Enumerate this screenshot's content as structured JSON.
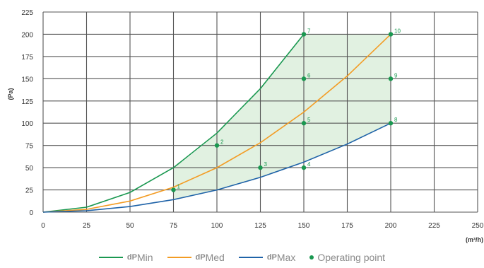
{
  "chart_data": {
    "type": "line",
    "xlabel": "(m³/h)",
    "ylabel": "(Pa)",
    "xlim": [
      0,
      250
    ],
    "ylim": [
      0,
      225
    ],
    "x_ticks": [
      "0",
      "25",
      "50",
      "75",
      "100",
      "125",
      "150",
      "175",
      "200",
      "225",
      "250"
    ],
    "y_ticks": [
      "0",
      "25",
      "50",
      "75",
      "100",
      "125",
      "150",
      "175",
      "200",
      "225"
    ],
    "grid": true,
    "series": [
      {
        "key": "min",
        "prefix": "dP",
        "suffix": "Min",
        "color": "#1a9850",
        "x": [
          0,
          25,
          50,
          75,
          100,
          125,
          150
        ],
        "y": [
          0,
          5.6,
          22.2,
          50,
          88.9,
          138.9,
          200
        ]
      },
      {
        "key": "med",
        "prefix": "dP",
        "suffix": "Med",
        "color": "#f39c24",
        "x": [
          0,
          25,
          50,
          75,
          100,
          125,
          150,
          175,
          200
        ],
        "y": [
          0,
          3.1,
          12.5,
          28.1,
          50,
          78.1,
          112.5,
          153.1,
          200
        ]
      },
      {
        "key": "max",
        "prefix": "dP",
        "suffix": "Max",
        "color": "#1f63a8",
        "x": [
          0,
          25,
          50,
          75,
          100,
          125,
          150,
          175,
          200
        ],
        "y": [
          0,
          1.6,
          6.3,
          14.1,
          25,
          39.1,
          56.3,
          76.6,
          100
        ]
      }
    ],
    "operating_points": {
      "color": "#1a9850",
      "label": "Operating point",
      "points": [
        {
          "n": "1",
          "x": 75,
          "y": 25
        },
        {
          "n": "2",
          "x": 100,
          "y": 75
        },
        {
          "n": "3",
          "x": 125,
          "y": 50
        },
        {
          "n": "4",
          "x": 150,
          "y": 50
        },
        {
          "n": "5",
          "x": 150,
          "y": 100
        },
        {
          "n": "6",
          "x": 150,
          "y": 150
        },
        {
          "n": "7",
          "x": 150,
          "y": 200
        },
        {
          "n": "8",
          "x": 200,
          "y": 100
        },
        {
          "n": "9",
          "x": 200,
          "y": 150
        },
        {
          "n": "10",
          "x": 200,
          "y": 200
        }
      ]
    },
    "region_fill": "#dcefdc",
    "legend_position": "bottom"
  }
}
